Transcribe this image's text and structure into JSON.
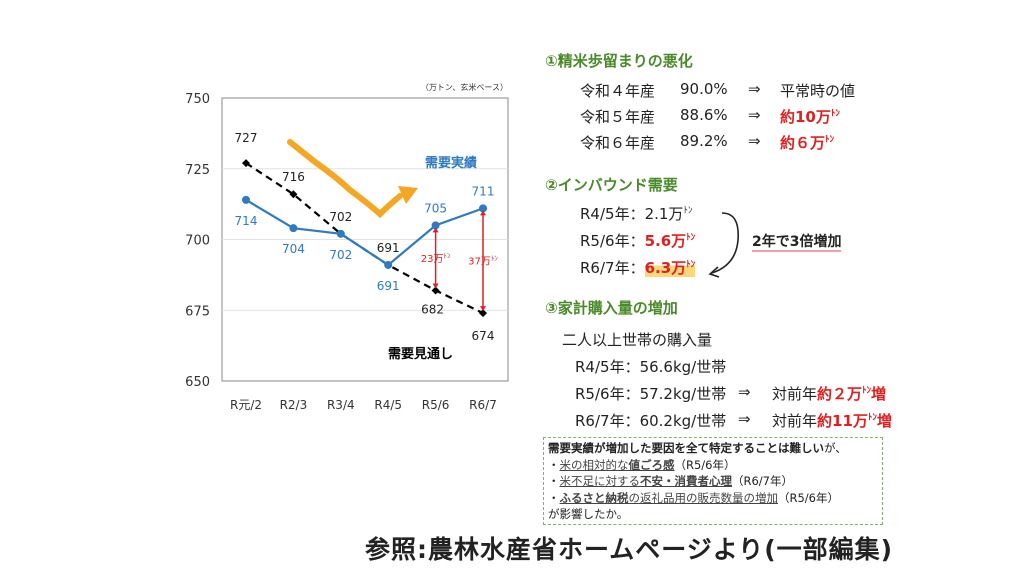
{
  "chart_data": {
    "type": "line",
    "unit_note": "（万トン、玄米ベース）",
    "categories": [
      "R元/2",
      "R2/3",
      "R3/4",
      "R4/5",
      "R5/6",
      "R6/7"
    ],
    "ylim": [
      650,
      750
    ],
    "yticks": [
      650,
      675,
      700,
      725,
      750
    ],
    "series": [
      {
        "name": "需要実績",
        "color": "#2e7bbf",
        "values": [
          714,
          704,
          702,
          691,
          705,
          711
        ]
      },
      {
        "name": "需要見通し",
        "color": "#000000",
        "style": "dashed",
        "values": [
          727,
          716,
          702,
          691,
          682,
          674
        ]
      }
    ],
    "annotations": [
      {
        "category": "R5/6",
        "from": 682,
        "to": 705,
        "label": "23万",
        "unit": "ﾄﾝ",
        "color": "#e02020"
      },
      {
        "category": "R6/7",
        "from": 674,
        "to": 711,
        "label": "37万",
        "unit": "ﾄﾝ",
        "color": "#e02020"
      }
    ],
    "trend_arrow_color": "#f5a623",
    "grid": true
  },
  "sections": {
    "s1": {
      "title": "①精米歩留まりの悪化",
      "rows": [
        {
          "year": "令和４年産",
          "pct": "90.0%",
          "arrow": "⇒",
          "result": "平常時の値",
          "red": false
        },
        {
          "year": "令和５年産",
          "pct": "88.6%",
          "arrow": "⇒",
          "result": "約10万",
          "unit": "ﾄﾝ",
          "red": true
        },
        {
          "year": "令和６年産",
          "pct": "89.2%",
          "arrow": "⇒",
          "result": "約６万",
          "unit": "ﾄﾝ",
          "red": true
        }
      ]
    },
    "s2": {
      "title": "②インバウンド需要",
      "rows": [
        {
          "label": "R4/5年：",
          "value": "2.1万",
          "unit": "ﾄﾝ"
        },
        {
          "label": "R5/6年：",
          "value": "5.6万",
          "unit": "ﾄﾝ"
        },
        {
          "label": "R6/7年：",
          "value": "6.3万",
          "unit": "ﾄﾝ"
        }
      ],
      "note": "2年で3倍増加"
    },
    "s3": {
      "title": "③家計購入量の増加",
      "subtitle": "二人以上世帯の購入量",
      "rows": [
        {
          "label": "R4/5年：56.6kg/世帯"
        },
        {
          "label": "R5/6年：57.2kg/世帯",
          "arrow": "⇒",
          "prefix": "対前年",
          "red": "約２万",
          "unit": "ﾄﾝ",
          "suffix": "増"
        },
        {
          "label": "R6/7年：60.2kg/世帯",
          "arrow": "⇒",
          "prefix": "対前年",
          "red": "約11万",
          "unit": "ﾄﾝ",
          "suffix": "増"
        }
      ]
    }
  },
  "box": {
    "lead_bold": "需要実績が増加した要因を全て特定することは難しい",
    "lead_rest": "が、",
    "b1_pre": "・",
    "b1_u": "米の相対的な",
    "b1_b": "値ごろ感",
    "b1_post": "（R5/6年）",
    "b2_pre": "・",
    "b2_u": "米不足に対する",
    "b2_b": "不安・消費者心理",
    "b2_post": "（R6/7年）",
    "b3_pre": "・",
    "b3_b": "ふるさと納税",
    "b3_u": "の返礼品用の販売数量の増加",
    "b3_post": "（R5/6年）",
    "end": "が影響したか。"
  },
  "footer": "参照:農林水産省ホームページより(一部編集)"
}
